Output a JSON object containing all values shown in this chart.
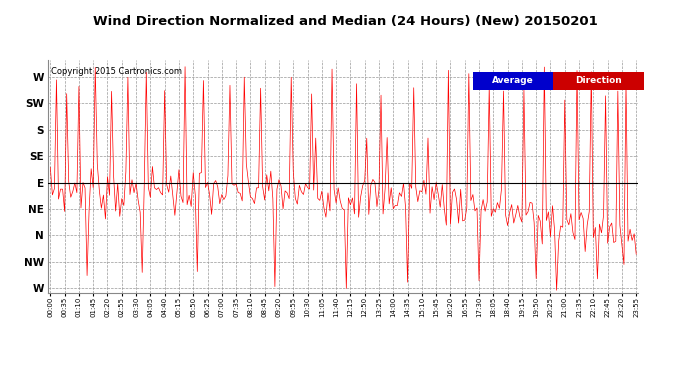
{
  "title": "Wind Direction Normalized and Median (24 Hours) (New) 20150201",
  "copyright": "Copyright 2015 Cartronics.com",
  "background_color": "#ffffff",
  "plot_bg_color": "#ffffff",
  "grid_color": "#999999",
  "line_color": "#ff0000",
  "median_line_color": "#000000",
  "median_value": 0.5,
  "y_labels": [
    "W",
    "SW",
    "S",
    "SE",
    "E",
    "NE",
    "N",
    "NW",
    "W"
  ],
  "y_ticks": [
    1.0,
    0.875,
    0.75,
    0.625,
    0.5,
    0.375,
    0.25,
    0.125,
    0.0
  ],
  "ylim": [
    -0.02,
    1.08
  ],
  "legend_average_bg": "#0000cc",
  "legend_direction_bg": "#cc0000",
  "legend_text_color": "#ffffff",
  "x_tick_labels": [
    "00:00",
    "00:35",
    "01:10",
    "01:45",
    "02:20",
    "02:55",
    "03:30",
    "04:05",
    "04:40",
    "05:15",
    "05:50",
    "06:25",
    "07:00",
    "07:35",
    "08:10",
    "08:45",
    "09:20",
    "09:55",
    "10:30",
    "11:05",
    "11:40",
    "12:15",
    "12:50",
    "13:25",
    "14:00",
    "14:35",
    "15:10",
    "15:45",
    "16:20",
    "16:55",
    "17:30",
    "18:05",
    "18:40",
    "19:15",
    "19:50",
    "20:25",
    "21:00",
    "21:35",
    "22:10",
    "22:45",
    "23:20",
    "23:55"
  ],
  "num_points": 288,
  "seed": 7
}
